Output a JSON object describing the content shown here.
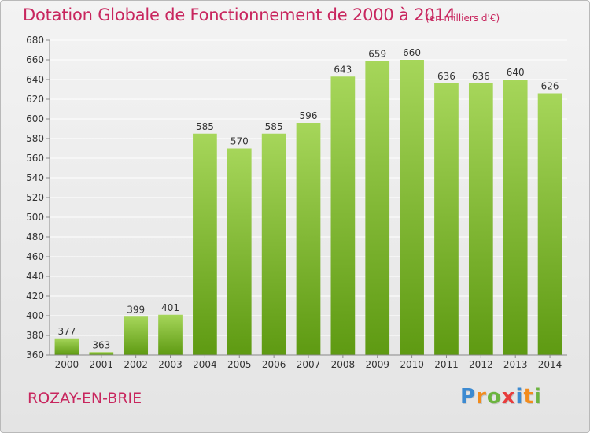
{
  "title": "Dotation Globale de Fonctionnement de 2000 à 2014",
  "subtitle": "(en milliers d'€)",
  "commune": "ROZAY-EN-BRIE",
  "logo": {
    "letters": [
      "P",
      "r",
      "o",
      "x",
      "i",
      "t",
      "i"
    ],
    "colors": [
      "#3c8ad1",
      "#f28b1c",
      "#6cb43f",
      "#e83d3d",
      "#3c8ad1",
      "#f28b1c",
      "#6cb43f"
    ]
  },
  "colors": {
    "bar_top": "#a6d65a",
    "bar_bottom": "#5e9a12",
    "grid": "#ffffff",
    "axis": "#888888"
  },
  "chart_data": {
    "type": "bar",
    "title": "Dotation Globale de Fonctionnement de 2000 à 2014",
    "xlabel": "",
    "ylabel": "",
    "categories": [
      "2000",
      "2001",
      "2002",
      "2003",
      "2004",
      "2005",
      "2006",
      "2007",
      "2008",
      "2009",
      "2010",
      "2011",
      "2012",
      "2013",
      "2014"
    ],
    "values": [
      377,
      363,
      399,
      401,
      585,
      570,
      585,
      596,
      643,
      659,
      660,
      636,
      636,
      640,
      626
    ],
    "ylim": [
      360,
      680
    ],
    "yticks": [
      360,
      380,
      400,
      420,
      440,
      460,
      480,
      500,
      520,
      540,
      560,
      580,
      600,
      620,
      640,
      660,
      680
    ],
    "grid": true,
    "legend": "none"
  }
}
